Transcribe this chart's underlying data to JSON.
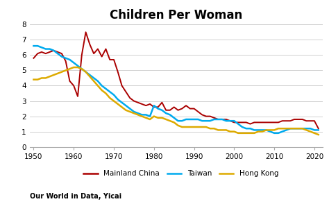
{
  "title": "Children Per Woman",
  "source": "Our World in Data, Yicai",
  "ylim": [
    0,
    8
  ],
  "yticks": [
    0,
    1,
    2,
    3,
    4,
    5,
    6,
    7,
    8
  ],
  "xlim": [
    1949,
    2022
  ],
  "xticks": [
    1950,
    1960,
    1970,
    1980,
    1990,
    2000,
    2010,
    2020
  ],
  "background_color": "#ffffff",
  "grid_color": "#d0d0d0",
  "mainland_china_color": "#aa0000",
  "taiwan_color": "#00aaee",
  "hong_kong_color": "#ddaa00",
  "mainland_china": {
    "years": [
      1950,
      1951,
      1952,
      1953,
      1954,
      1955,
      1956,
      1957,
      1958,
      1959,
      1960,
      1961,
      1962,
      1963,
      1964,
      1965,
      1966,
      1967,
      1968,
      1969,
      1970,
      1971,
      1972,
      1973,
      1974,
      1975,
      1976,
      1977,
      1978,
      1979,
      1980,
      1981,
      1982,
      1983,
      1984,
      1985,
      1986,
      1987,
      1988,
      1989,
      1990,
      1991,
      1992,
      1993,
      1994,
      1995,
      1996,
      1997,
      1998,
      1999,
      2000,
      2001,
      2002,
      2003,
      2004,
      2005,
      2006,
      2007,
      2008,
      2009,
      2010,
      2011,
      2012,
      2013,
      2014,
      2015,
      2016,
      2017,
      2018,
      2019,
      2020,
      2021
    ],
    "values": [
      5.8,
      6.1,
      6.2,
      6.1,
      6.2,
      6.3,
      6.2,
      6.1,
      5.6,
      4.3,
      4.0,
      3.3,
      6.0,
      7.5,
      6.7,
      6.1,
      6.4,
      5.9,
      6.4,
      5.7,
      5.7,
      4.9,
      4.0,
      3.6,
      3.2,
      3.0,
      2.9,
      2.8,
      2.7,
      2.8,
      2.6,
      2.6,
      2.9,
      2.4,
      2.4,
      2.6,
      2.4,
      2.5,
      2.7,
      2.5,
      2.5,
      2.3,
      2.1,
      2.0,
      2.0,
      1.9,
      1.8,
      1.8,
      1.8,
      1.7,
      1.6,
      1.6,
      1.6,
      1.6,
      1.5,
      1.6,
      1.6,
      1.6,
      1.6,
      1.6,
      1.6,
      1.6,
      1.7,
      1.7,
      1.7,
      1.8,
      1.8,
      1.8,
      1.7,
      1.7,
      1.7,
      1.2
    ]
  },
  "taiwan": {
    "years": [
      1950,
      1951,
      1952,
      1953,
      1954,
      1955,
      1956,
      1957,
      1958,
      1959,
      1960,
      1961,
      1962,
      1963,
      1964,
      1965,
      1966,
      1967,
      1968,
      1969,
      1970,
      1971,
      1972,
      1973,
      1974,
      1975,
      1976,
      1977,
      1978,
      1979,
      1980,
      1981,
      1982,
      1983,
      1984,
      1985,
      1986,
      1987,
      1988,
      1989,
      1990,
      1991,
      1992,
      1993,
      1994,
      1995,
      1996,
      1997,
      1998,
      1999,
      2000,
      2001,
      2002,
      2003,
      2004,
      2005,
      2006,
      2007,
      2008,
      2009,
      2010,
      2011,
      2012,
      2013,
      2014,
      2015,
      2016,
      2017,
      2018,
      2019,
      2020,
      2021
    ],
    "values": [
      6.6,
      6.6,
      6.5,
      6.4,
      6.4,
      6.3,
      6.1,
      5.9,
      5.8,
      5.7,
      5.5,
      5.3,
      5.1,
      4.9,
      4.7,
      4.5,
      4.3,
      4.0,
      3.8,
      3.6,
      3.4,
      3.1,
      2.9,
      2.7,
      2.5,
      2.3,
      2.2,
      2.1,
      2.1,
      2.0,
      2.7,
      2.5,
      2.4,
      2.2,
      2.1,
      1.9,
      1.7,
      1.7,
      1.8,
      1.8,
      1.8,
      1.8,
      1.7,
      1.7,
      1.7,
      1.8,
      1.8,
      1.8,
      1.7,
      1.7,
      1.7,
      1.5,
      1.3,
      1.2,
      1.2,
      1.1,
      1.1,
      1.1,
      1.1,
      1.0,
      0.9,
      0.9,
      1.0,
      1.1,
      1.2,
      1.2,
      1.2,
      1.2,
      1.2,
      1.2,
      1.1,
      1.1
    ]
  },
  "hong_kong": {
    "years": [
      1950,
      1951,
      1952,
      1953,
      1954,
      1955,
      1956,
      1957,
      1958,
      1959,
      1960,
      1961,
      1962,
      1963,
      1964,
      1965,
      1966,
      1967,
      1968,
      1969,
      1970,
      1971,
      1972,
      1973,
      1974,
      1975,
      1976,
      1977,
      1978,
      1979,
      1980,
      1981,
      1982,
      1983,
      1984,
      1985,
      1986,
      1987,
      1988,
      1989,
      1990,
      1991,
      1992,
      1993,
      1994,
      1995,
      1996,
      1997,
      1998,
      1999,
      2000,
      2001,
      2002,
      2003,
      2004,
      2005,
      2006,
      2007,
      2008,
      2009,
      2010,
      2011,
      2012,
      2013,
      2014,
      2015,
      2016,
      2017,
      2018,
      2019,
      2020,
      2021
    ],
    "values": [
      4.4,
      4.4,
      4.5,
      4.5,
      4.6,
      4.7,
      4.8,
      4.9,
      5.0,
      5.1,
      5.2,
      5.2,
      5.1,
      4.9,
      4.6,
      4.3,
      4.0,
      3.7,
      3.5,
      3.2,
      3.0,
      2.8,
      2.6,
      2.4,
      2.3,
      2.2,
      2.1,
      2.0,
      1.9,
      1.8,
      2.0,
      1.9,
      1.9,
      1.8,
      1.7,
      1.6,
      1.4,
      1.3,
      1.3,
      1.3,
      1.3,
      1.3,
      1.3,
      1.3,
      1.2,
      1.2,
      1.1,
      1.1,
      1.1,
      1.0,
      1.0,
      0.9,
      0.9,
      0.9,
      0.9,
      0.9,
      1.0,
      1.0,
      1.1,
      1.1,
      1.1,
      1.2,
      1.2,
      1.2,
      1.2,
      1.2,
      1.2,
      1.2,
      1.1,
      1.0,
      0.9,
      0.8
    ]
  }
}
